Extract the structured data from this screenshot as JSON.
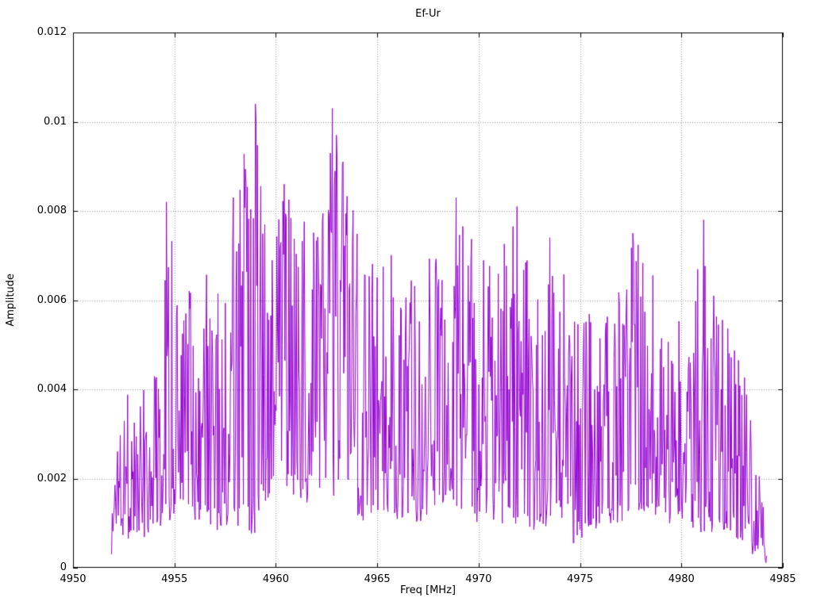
{
  "page": {
    "background": "#ffffff"
  },
  "chart_data": {
    "type": "line",
    "title": "Ef-Ur",
    "xlabel": "Freq [MHz]",
    "ylabel": "Amplitude",
    "xlim": [
      4950,
      4985
    ],
    "ylim": [
      0,
      0.012
    ],
    "x_tick_values": [
      4950,
      4955,
      4960,
      4965,
      4970,
      4975,
      4980,
      4985
    ],
    "x_tick_labels": [
      "4950",
      "4955",
      "4960",
      "4965",
      "4970",
      "4975",
      "4980",
      "4985"
    ],
    "y_tick_values": [
      0,
      0.002,
      0.004,
      0.006,
      0.008,
      0.01,
      0.012
    ],
    "y_tick_labels": [
      "0",
      "0.002",
      "0.004",
      "0.006",
      "0.008",
      "0.01",
      "0.012"
    ],
    "grid": true,
    "legend": "none",
    "line_color": "#9400D3",
    "axis_color": "#000000",
    "grid_color": "#9a9a9a",
    "data_x_range": [
      4951.9,
      4984.2
    ],
    "n_points": 980,
    "seed": 1337,
    "amplitude_envelope": [
      {
        "x": 4951.9,
        "min": 0.0002,
        "max": 0.0012
      },
      {
        "x": 4952.2,
        "min": 0.0008,
        "max": 0.0042
      },
      {
        "x": 4953.0,
        "min": 0.0005,
        "max": 0.004
      },
      {
        "x": 4954.0,
        "min": 0.0008,
        "max": 0.0048
      },
      {
        "x": 4954.6,
        "min": 0.001,
        "max": 0.0082
      },
      {
        "x": 4955.5,
        "min": 0.0012,
        "max": 0.006
      },
      {
        "x": 4956.2,
        "min": 0.001,
        "max": 0.0068
      },
      {
        "x": 4957.2,
        "min": 0.0008,
        "max": 0.0062
      },
      {
        "x": 4957.9,
        "min": 0.001,
        "max": 0.0083
      },
      {
        "x": 4959.0,
        "min": 0.0006,
        "max": 0.0104
      },
      {
        "x": 4959.8,
        "min": 0.0015,
        "max": 0.008
      },
      {
        "x": 4960.4,
        "min": 0.0018,
        "max": 0.0086
      },
      {
        "x": 4961.3,
        "min": 0.0015,
        "max": 0.008
      },
      {
        "x": 4962.1,
        "min": 0.0012,
        "max": 0.008
      },
      {
        "x": 4962.8,
        "min": 0.0015,
        "max": 0.0103
      },
      {
        "x": 4963.3,
        "min": 0.0015,
        "max": 0.0091
      },
      {
        "x": 4964.2,
        "min": 0.001,
        "max": 0.0072
      },
      {
        "x": 4965.2,
        "min": 0.0008,
        "max": 0.0073
      },
      {
        "x": 4966.2,
        "min": 0.001,
        "max": 0.0068
      },
      {
        "x": 4967.2,
        "min": 0.001,
        "max": 0.0069
      },
      {
        "x": 4968.2,
        "min": 0.0012,
        "max": 0.0072
      },
      {
        "x": 4968.9,
        "min": 0.001,
        "max": 0.0083
      },
      {
        "x": 4969.8,
        "min": 0.001,
        "max": 0.0072
      },
      {
        "x": 4970.8,
        "min": 0.0008,
        "max": 0.0069
      },
      {
        "x": 4971.9,
        "min": 0.001,
        "max": 0.0081
      },
      {
        "x": 4973.0,
        "min": 0.0008,
        "max": 0.006
      },
      {
        "x": 4973.5,
        "min": 0.001,
        "max": 0.0074
      },
      {
        "x": 4974.5,
        "min": 0.0005,
        "max": 0.0063
      },
      {
        "x": 4975.5,
        "min": 0.0008,
        "max": 0.0059
      },
      {
        "x": 4976.5,
        "min": 0.001,
        "max": 0.006
      },
      {
        "x": 4977.6,
        "min": 0.001,
        "max": 0.0075
      },
      {
        "x": 4978.8,
        "min": 0.001,
        "max": 0.0066
      },
      {
        "x": 4979.8,
        "min": 0.001,
        "max": 0.0057
      },
      {
        "x": 4980.6,
        "min": 0.0008,
        "max": 0.006
      },
      {
        "x": 4981.1,
        "min": 0.0008,
        "max": 0.0078
      },
      {
        "x": 4982.0,
        "min": 0.0008,
        "max": 0.0066
      },
      {
        "x": 4982.8,
        "min": 0.0006,
        "max": 0.0052
      },
      {
        "x": 4983.5,
        "min": 0.0003,
        "max": 0.0036
      },
      {
        "x": 4984.2,
        "min": 0.0001,
        "max": 0.0008
      }
    ],
    "notable_peaks": [
      {
        "x": 4954.6,
        "y": 0.0082
      },
      {
        "x": 4957.9,
        "y": 0.0083
      },
      {
        "x": 4959.0,
        "y": 0.0104
      },
      {
        "x": 4960.4,
        "y": 0.0086
      },
      {
        "x": 4962.8,
        "y": 0.0103
      },
      {
        "x": 4963.0,
        "y": 0.0097
      },
      {
        "x": 4963.3,
        "y": 0.0091
      },
      {
        "x": 4968.9,
        "y": 0.0083
      },
      {
        "x": 4971.9,
        "y": 0.0081
      },
      {
        "x": 4973.5,
        "y": 0.0074
      },
      {
        "x": 4977.6,
        "y": 0.0075
      },
      {
        "x": 4981.1,
        "y": 0.0078
      }
    ]
  }
}
